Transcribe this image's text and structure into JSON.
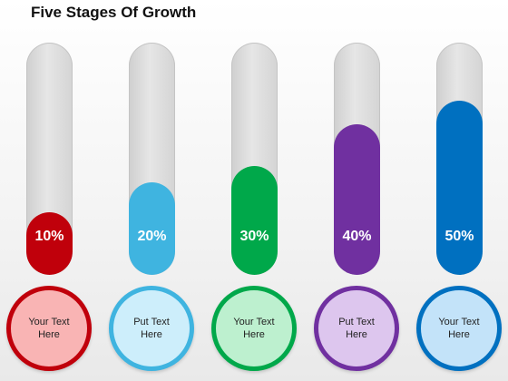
{
  "title": "Five Stages Of Growth",
  "stages": [
    {
      "percent_label": "10%",
      "fill_level": 0.27,
      "caption": "Your Text\nHere",
      "color": "#c0000b",
      "circle_fill": "#f9b4b4",
      "circle_border": "#c0000b"
    },
    {
      "percent_label": "20%",
      "fill_level": 0.4,
      "caption": "Put Text\nHere",
      "color": "#3fb4e0",
      "circle_fill": "#cdeefb",
      "circle_border": "#3fb4e0"
    },
    {
      "percent_label": "30%",
      "fill_level": 0.47,
      "caption": "Your Text\nHere",
      "color": "#00a84a",
      "circle_fill": "#bdf0cf",
      "circle_border": "#00a84a"
    },
    {
      "percent_label": "40%",
      "fill_level": 0.65,
      "caption": "Put Text\nHere",
      "color": "#7030a0",
      "circle_fill": "#ddc6ee",
      "circle_border": "#7030a0"
    },
    {
      "percent_label": "50%",
      "fill_level": 0.75,
      "caption": "Your Text\nHere",
      "color": "#0070c0",
      "circle_fill": "#c3e3f9",
      "circle_border": "#0070c0"
    }
  ]
}
